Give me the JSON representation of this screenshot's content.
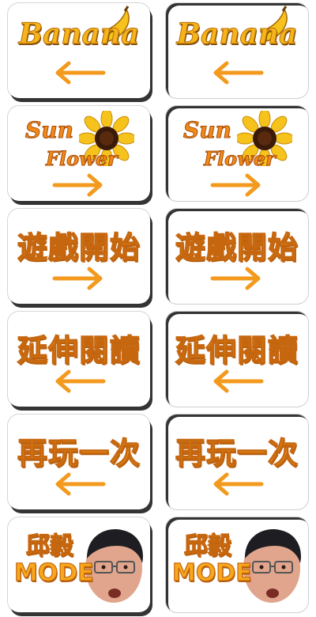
{
  "buttons": [
    {
      "row": 0,
      "label": "Banana",
      "arrow": "left",
      "variant": "normal"
    },
    {
      "row": 0,
      "label": "Banana",
      "arrow": "left",
      "variant": "pressed"
    },
    {
      "row": 1,
      "label_line1": "Sun",
      "label_line2": "Flower",
      "arrow": "right",
      "variant": "normal"
    },
    {
      "row": 1,
      "label_line1": "Sun",
      "label_line2": "Flower",
      "arrow": "right",
      "variant": "pressed"
    },
    {
      "row": 2,
      "label": "遊戲開始",
      "arrow": "right",
      "variant": "normal"
    },
    {
      "row": 2,
      "label": "遊戲開始",
      "arrow": "right",
      "variant": "pressed"
    },
    {
      "row": 3,
      "label": "延伸閱讀",
      "arrow": "left",
      "variant": "normal"
    },
    {
      "row": 3,
      "label": "延伸閱讀",
      "arrow": "left",
      "variant": "pressed"
    },
    {
      "row": 4,
      "label": "再玩一次",
      "arrow": "left",
      "variant": "normal"
    },
    {
      "row": 4,
      "label": "再玩一次",
      "arrow": "left",
      "variant": "pressed"
    },
    {
      "row": 5,
      "label_line1": "邱毅",
      "label_line2": "MODE",
      "variant": "normal"
    },
    {
      "row": 5,
      "label_line1": "邱毅",
      "label_line2": "MODE",
      "variant": "pressed"
    }
  ],
  "colors": {
    "text_fill": "#f7a81c",
    "text_stroke": "#c6670f",
    "arrow": "#f39a1e",
    "shadow": "#343434"
  },
  "icons": [
    "banana-icon",
    "sunflower-icon",
    "left-arrow-icon",
    "right-arrow-icon",
    "portrait-face-icon"
  ]
}
